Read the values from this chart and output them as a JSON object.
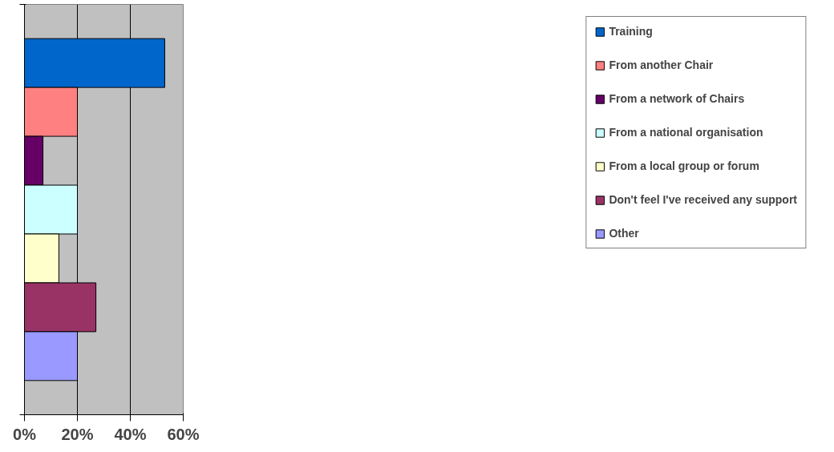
{
  "chart_data": {
    "type": "bar",
    "orientation": "horizontal",
    "categories": [
      null,
      null,
      null,
      null,
      null,
      null,
      null
    ],
    "series": [
      {
        "name": "Training",
        "color": "#0066cc",
        "values": [
          53,
          null,
          null,
          null,
          null,
          null,
          null
        ]
      },
      {
        "name": "From another Chair",
        "color": "#ff8080",
        "values": [
          null,
          20,
          null,
          null,
          null,
          null,
          null
        ]
      },
      {
        "name": "From a network of Chairs",
        "color": "#660066",
        "values": [
          null,
          null,
          7,
          null,
          null,
          null,
          null
        ]
      },
      {
        "name": "From a national organisation",
        "color": "#ccffff",
        "values": [
          null,
          null,
          null,
          20,
          null,
          null,
          null
        ]
      },
      {
        "name": "From a local group or forum",
        "color": "#ffffcc",
        "values": [
          null,
          null,
          null,
          null,
          13,
          null,
          null
        ]
      },
      {
        "name": "Don't feel I've received any support",
        "color": "#993366",
        "values": [
          null,
          null,
          null,
          null,
          null,
          27,
          null
        ]
      },
      {
        "name": "Other",
        "color": "#9999ff",
        "values": [
          null,
          null,
          null,
          null,
          null,
          null,
          20
        ]
      }
    ],
    "xlim": [
      0,
      60
    ],
    "xticks": [
      {
        "value": 0,
        "label": "0%"
      },
      {
        "value": 20,
        "label": "20%"
      },
      {
        "value": 40,
        "label": "40%"
      },
      {
        "value": 60,
        "label": "60%"
      }
    ],
    "grid": "x",
    "legend": "right",
    "tick_labels": "x"
  }
}
